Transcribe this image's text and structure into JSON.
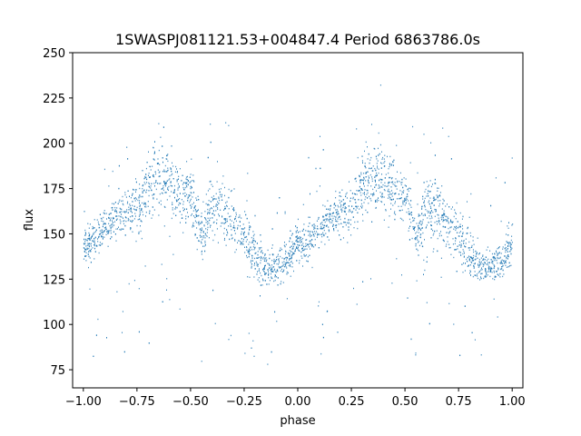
{
  "chart_data": {
    "type": "scatter",
    "title": "1SWASPJ081121.53+004847.4 Period 6863786.0s",
    "xlabel": "phase",
    "ylabel": "flux",
    "xlim": [
      -1.05,
      1.05
    ],
    "ylim": [
      65,
      250
    ],
    "x_ticks": [
      -1.0,
      -0.75,
      -0.5,
      -0.25,
      0.0,
      0.25,
      0.5,
      0.75,
      1.0
    ],
    "x_tick_labels": [
      "−1.00",
      "−0.75",
      "−0.50",
      "−0.25",
      "0.00",
      "0.25",
      "0.50",
      "0.75",
      "1.00"
    ],
    "y_ticks": [
      75,
      100,
      125,
      150,
      175,
      200,
      225,
      250
    ],
    "y_tick_labels": [
      "75",
      "100",
      "125",
      "150",
      "175",
      "200",
      "225",
      "250"
    ],
    "grid": false,
    "legend": "none",
    "marker_color": "#1f77b4",
    "series": [
      {
        "phase": [
          0.0,
          0.05,
          0.1,
          0.15,
          0.2,
          0.25,
          0.3,
          0.35,
          0.4,
          0.45,
          0.5,
          0.55,
          0.6,
          0.65,
          0.7,
          0.75,
          0.8,
          0.85,
          0.9,
          0.95,
          1.0
        ],
        "flux": [
          142,
          147,
          153,
          160,
          163,
          164,
          177,
          182,
          180,
          172,
          172,
          150,
          165,
          163,
          155,
          150,
          140,
          132,
          133,
          136,
          148
        ],
        "spread": [
          8,
          7,
          7,
          8,
          9,
          12,
          13,
          14,
          14,
          12,
          10,
          9,
          12,
          12,
          11,
          11,
          11,
          7,
          7,
          8,
          8
        ]
      }
    ]
  }
}
